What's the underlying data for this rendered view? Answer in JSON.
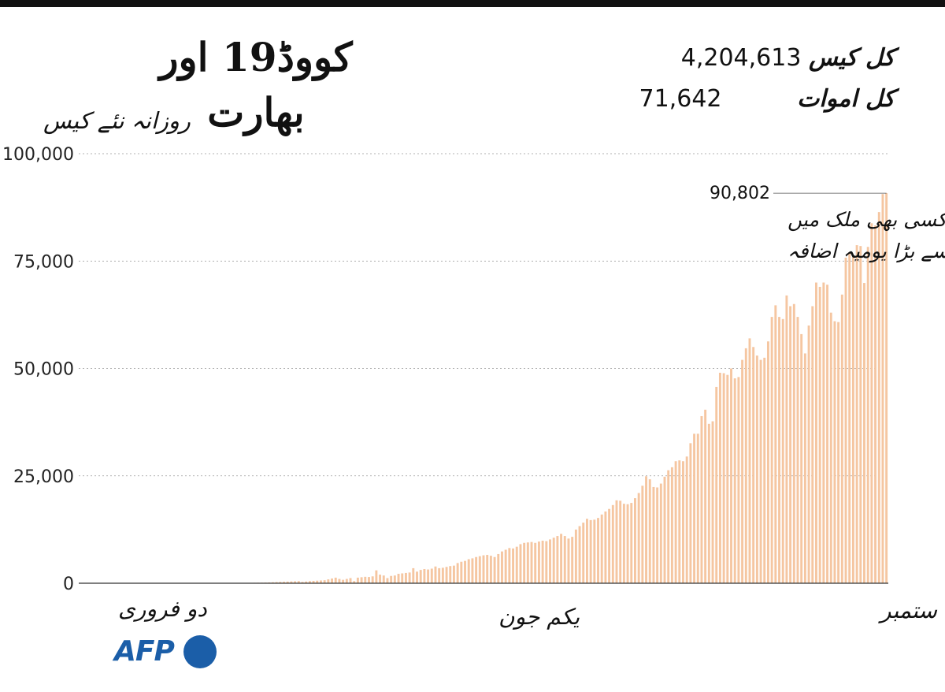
{
  "title": "کووڈ19 اور بھارت",
  "stats": {
    "cases_label": "کل کیس",
    "cases_value": "4,204,613",
    "deaths_label": "کل اموات",
    "deaths_value": "71,642"
  },
  "colors": {
    "bar": "#f5c6a1",
    "axis": "#333333",
    "grid": "#999999",
    "brand": "#1b5ea8"
  },
  "logo": {
    "text": "AFP"
  },
  "chart_data": {
    "type": "bar",
    "ylabel": "روزانہ نئے کیس",
    "ylim": [
      0,
      100000
    ],
    "yticks": [
      {
        "value": 0,
        "label": "0"
      },
      {
        "value": 25000,
        "label": "25,000"
      },
      {
        "value": 50000,
        "label": "50,000"
      },
      {
        "value": 75000,
        "label": "75,000"
      },
      {
        "value": 100000,
        "label": "100,000"
      }
    ],
    "grid": true,
    "x_start_label": "دو فروری",
    "x_mid_label": "یکم جون",
    "x_end_label": "سات ستمبر",
    "series": [
      {
        "values": [
          1,
          0,
          0,
          0,
          0,
          0,
          0,
          0,
          0,
          0,
          0,
          0,
          0,
          0,
          0,
          0,
          0,
          0,
          0,
          0,
          0,
          0,
          0,
          0,
          0,
          0,
          0,
          0,
          0,
          0,
          2,
          1,
          3,
          5,
          8,
          12,
          15,
          20,
          25,
          30,
          40,
          50,
          60,
          70,
          80,
          90,
          100,
          110,
          120,
          130,
          150,
          180,
          220,
          260,
          300,
          340,
          380,
          420,
          460,
          500,
          300,
          400,
          500,
          550,
          600,
          650,
          700,
          900,
          1100,
          1300,
          1000,
          800,
          1000,
          1200,
          500,
          1300,
          1400,
          1500,
          1450,
          1600,
          3000,
          2000,
          1800,
          1200,
          1700,
          1800,
          2200,
          2300,
          2400,
          2500,
          3500,
          2700,
          3100,
          3300,
          3200,
          3400,
          3900,
          3500,
          3600,
          3800,
          4000,
          4100,
          4700,
          5000,
          5200,
          5600,
          5800,
          6100,
          6300,
          6500,
          6600,
          6400,
          6100,
          6800,
          7400,
          7800,
          8200,
          8100,
          8500,
          9100,
          9400,
          9500,
          9600,
          9400,
          9700,
          9900,
          9800,
          10200,
          10600,
          11000,
          11500,
          11000,
          10400,
          10800,
          12500,
          13300,
          14100,
          15000,
          14700,
          14800,
          15200,
          16000,
          16700,
          17300,
          18200,
          19300,
          19200,
          18500,
          18400,
          18700,
          19800,
          21000,
          22700,
          24900,
          24200,
          22400,
          22300,
          23200,
          24800,
          26300,
          27000,
          28400,
          28600,
          28400,
          29500,
          32600,
          34800,
          34800,
          38900,
          40400,
          37100,
          37700,
          45700,
          49000,
          48900,
          48500,
          50000,
          47700,
          48000,
          52000,
          54700,
          57000,
          55000,
          53000,
          52000,
          52500,
          56300,
          62000,
          64700,
          62000,
          61500,
          67000,
          64500,
          65000,
          62000,
          58000,
          53500,
          60000,
          64500,
          70000,
          69000,
          70000,
          69500,
          63000,
          61000,
          60800,
          67200,
          75800,
          77000,
          76000,
          78700,
          78500,
          69900,
          78300,
          83800,
          83300,
          86400,
          90600,
          90802
        ]
      }
    ],
    "annotations": [
      {
        "value": 90802,
        "label": "90,802",
        "text_lines": [
          "کسی بھی ملک میں",
          "سب سے بڑا یومیہ اضافہ"
        ]
      }
    ]
  }
}
